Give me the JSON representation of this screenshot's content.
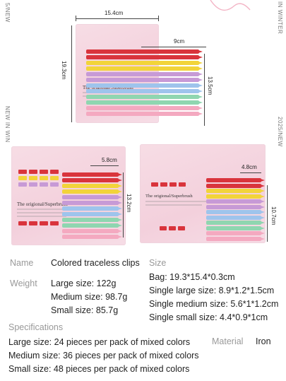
{
  "side_text": {
    "left_top": "5/NEW",
    "left_mid": "NEW IN WIN",
    "right_top": "IN WINTER",
    "right_mid": "2025/NEW"
  },
  "dimensions": {
    "bag_width": "15.4cm",
    "bag_height": "19.3cm",
    "large_length": "9cm",
    "large_height": "13.5cm",
    "medium_width": "5.8cm",
    "medium_height": "13.2cm",
    "small_width": "4.8cm",
    "small_height": "10.7cm"
  },
  "packaging": {
    "label_large": "The origional/Superbrush",
    "label_medium": "The origional/Superbrush",
    "label_small": "The origional/Superbrush"
  },
  "specs": {
    "name_label": "Name",
    "name_value": "Colored traceless clips",
    "weight_label": "Weight",
    "weight_lines": [
      "Large size: 122g",
      "Medium size: 98.7g",
      "Small size: 85.7g"
    ],
    "size_label": "Size",
    "size_lines": [
      "Bag: 19.3*15.4*0.3cm",
      "Single large size: 8.9*1.2*1.5cm",
      "Single medium size: 5.6*1*1.2cm",
      "Single small size: 4.4*0.9*1cm"
    ],
    "specifications_label": "Specifications",
    "spec_lines": [
      "Large size: 24 pieces per pack of mixed colors",
      "Medium size: 36 pieces per pack of mixed colors",
      "Small size: 48 pieces per pack of mixed colors"
    ],
    "material_label": "Material",
    "material_value": "Iron"
  },
  "colors": {
    "red": "#d9343c",
    "yellow": "#f2d43a",
    "purple": "#c79ad6",
    "blue": "#9ec4ec",
    "green": "#8fd6b0",
    "pink": "#f4a9c0",
    "bag": "#f5d7e1"
  }
}
